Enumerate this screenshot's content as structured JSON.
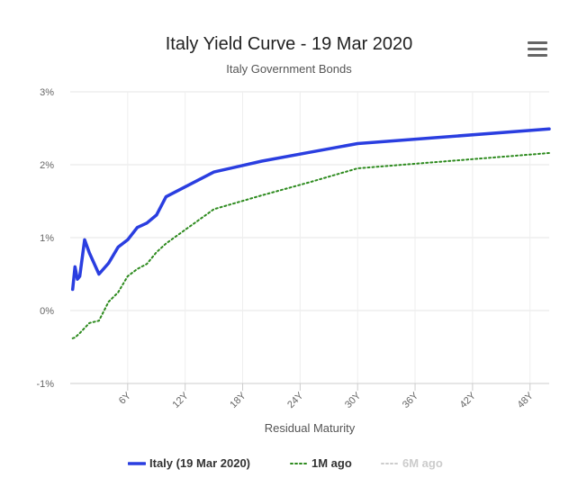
{
  "title": "Italy Yield Curve - 19 Mar 2020",
  "subtitle": "Italy Government Bonds",
  "menu_icon": "hamburger-menu-icon",
  "chart_data": {
    "type": "line",
    "title": "Italy Yield Curve - 19 Mar 2020",
    "subtitle": "Italy Government Bonds",
    "xlabel": "Residual Maturity",
    "ylabel": "",
    "xlim": [
      0,
      50
    ],
    "ylim": [
      -1,
      3
    ],
    "x_ticks": [
      6,
      12,
      18,
      24,
      30,
      36,
      42,
      48
    ],
    "x_tick_labels": [
      "6Y",
      "12Y",
      "18Y",
      "24Y",
      "30Y",
      "36Y",
      "42Y",
      "48Y"
    ],
    "y_ticks": [
      -1,
      0,
      1,
      2,
      3
    ],
    "y_tick_labels": [
      "-1%",
      "0%",
      "1%",
      "2%",
      "3%"
    ],
    "grid": true,
    "legend_position": "bottom-center",
    "series": [
      {
        "name": "Italy (19 Mar 2020)",
        "color": "#2a3ee0",
        "style": "solid",
        "visible": true,
        "x": [
          0.25,
          0.5,
          0.75,
          1,
          1.5,
          2,
          3,
          4,
          5,
          6,
          7,
          8,
          9,
          10,
          15,
          20,
          25,
          30,
          50
        ],
        "y": [
          0.29,
          0.6,
          0.43,
          0.47,
          0.97,
          0.79,
          0.5,
          0.65,
          0.87,
          0.97,
          1.14,
          1.2,
          1.31,
          1.56,
          1.9,
          2.05,
          2.17,
          2.29,
          2.49
        ]
      },
      {
        "name": "1M ago",
        "color": "#2e8b1f",
        "style": "dotted",
        "visible": true,
        "x": [
          0.25,
          0.5,
          1,
          2,
          3,
          4,
          5,
          6,
          7,
          8,
          9,
          10,
          15,
          20,
          25,
          30,
          50
        ],
        "y": [
          -0.38,
          -0.37,
          -0.31,
          -0.17,
          -0.14,
          0.12,
          0.25,
          0.47,
          0.57,
          0.64,
          0.8,
          0.92,
          1.39,
          1.58,
          1.76,
          1.95,
          2.16
        ]
      },
      {
        "name": "6M ago",
        "color": "#cccccc",
        "style": "dotted",
        "visible": false,
        "x": [],
        "y": []
      }
    ]
  }
}
